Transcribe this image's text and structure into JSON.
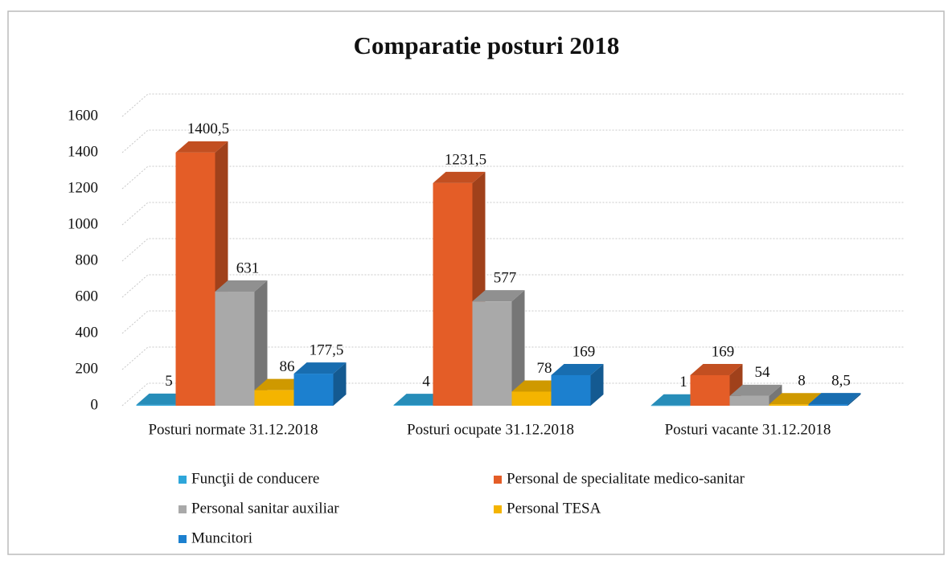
{
  "chart_data": {
    "type": "bar3d",
    "title": "Comparatie posturi 2018",
    "categories": [
      "Posturi normate 31.12.2018",
      "Posturi ocupate 31.12.2018",
      "Posturi vacante 31.12.2018"
    ],
    "series": [
      {
        "name": "Funcţii de conducere",
        "color": "#2ea6da",
        "values": [
          5,
          4,
          1
        ]
      },
      {
        "name": "Personal de specialitate medico-sanitar",
        "color": "#e45d27",
        "values": [
          1400.5,
          1231.5,
          169
        ],
        "value_labels": [
          "1400,5",
          "1231,5",
          "169"
        ]
      },
      {
        "name": "Personal sanitar auxiliar",
        "color": "#a9a9a9",
        "values": [
          631,
          577,
          54
        ]
      },
      {
        "name": "Personal TESA",
        "color": "#f4b400",
        "values": [
          86,
          78,
          8
        ]
      },
      {
        "name": "Muncitori",
        "color": "#1c80cf",
        "values": [
          177.5,
          169,
          8.5
        ],
        "value_labels": [
          "177,5",
          "169",
          "8,5"
        ]
      }
    ],
    "ylim": [
      0,
      1600
    ],
    "yticks": [
      0,
      200,
      400,
      600,
      800,
      1000,
      1200,
      1400,
      1600
    ],
    "grid": true
  }
}
